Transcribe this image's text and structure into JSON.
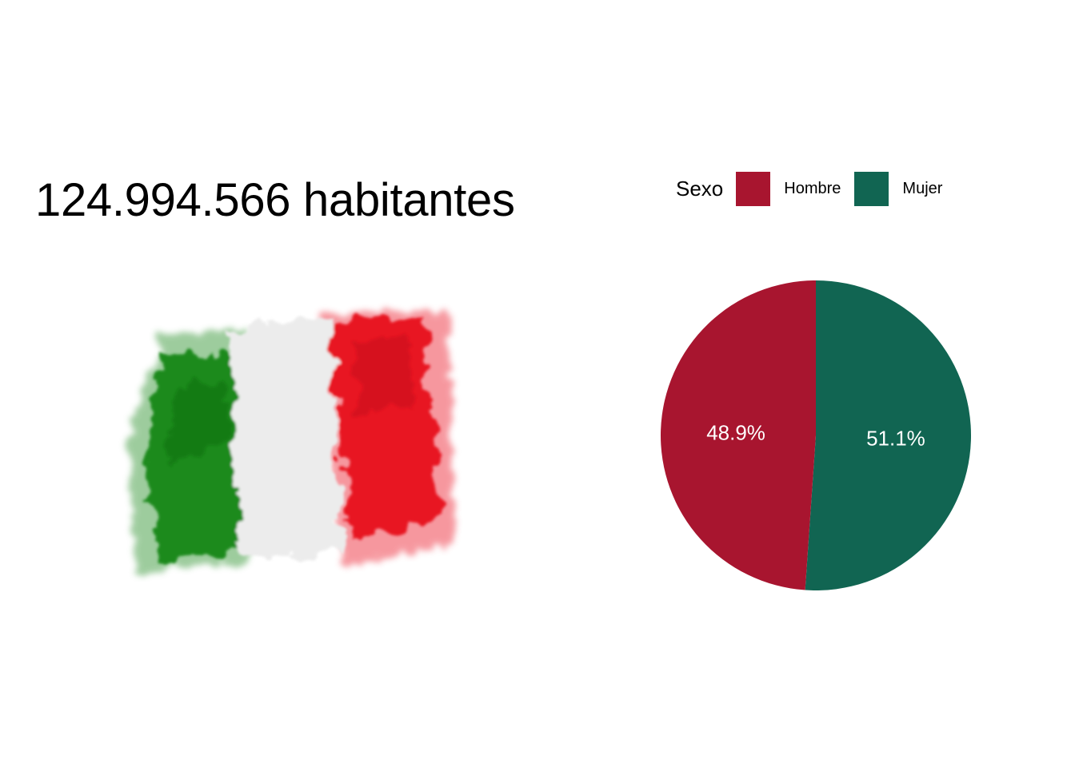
{
  "headline": "124.994.566 habitantes",
  "flag": {
    "image": "italian-flag-watercolor",
    "colors": [
      "#1f8a1f",
      "#eeeeee",
      "#e81521"
    ]
  },
  "chart_data": {
    "type": "pie",
    "legend": {
      "title": "Sexo",
      "placement": "top"
    },
    "slices": [
      {
        "label": "Hombre",
        "value": 48.9,
        "value_label": "48.9%",
        "color": "#A8152F"
      },
      {
        "label": "Mujer",
        "value": 51.1,
        "value_label": "51.1%",
        "color": "#116552"
      }
    ]
  }
}
